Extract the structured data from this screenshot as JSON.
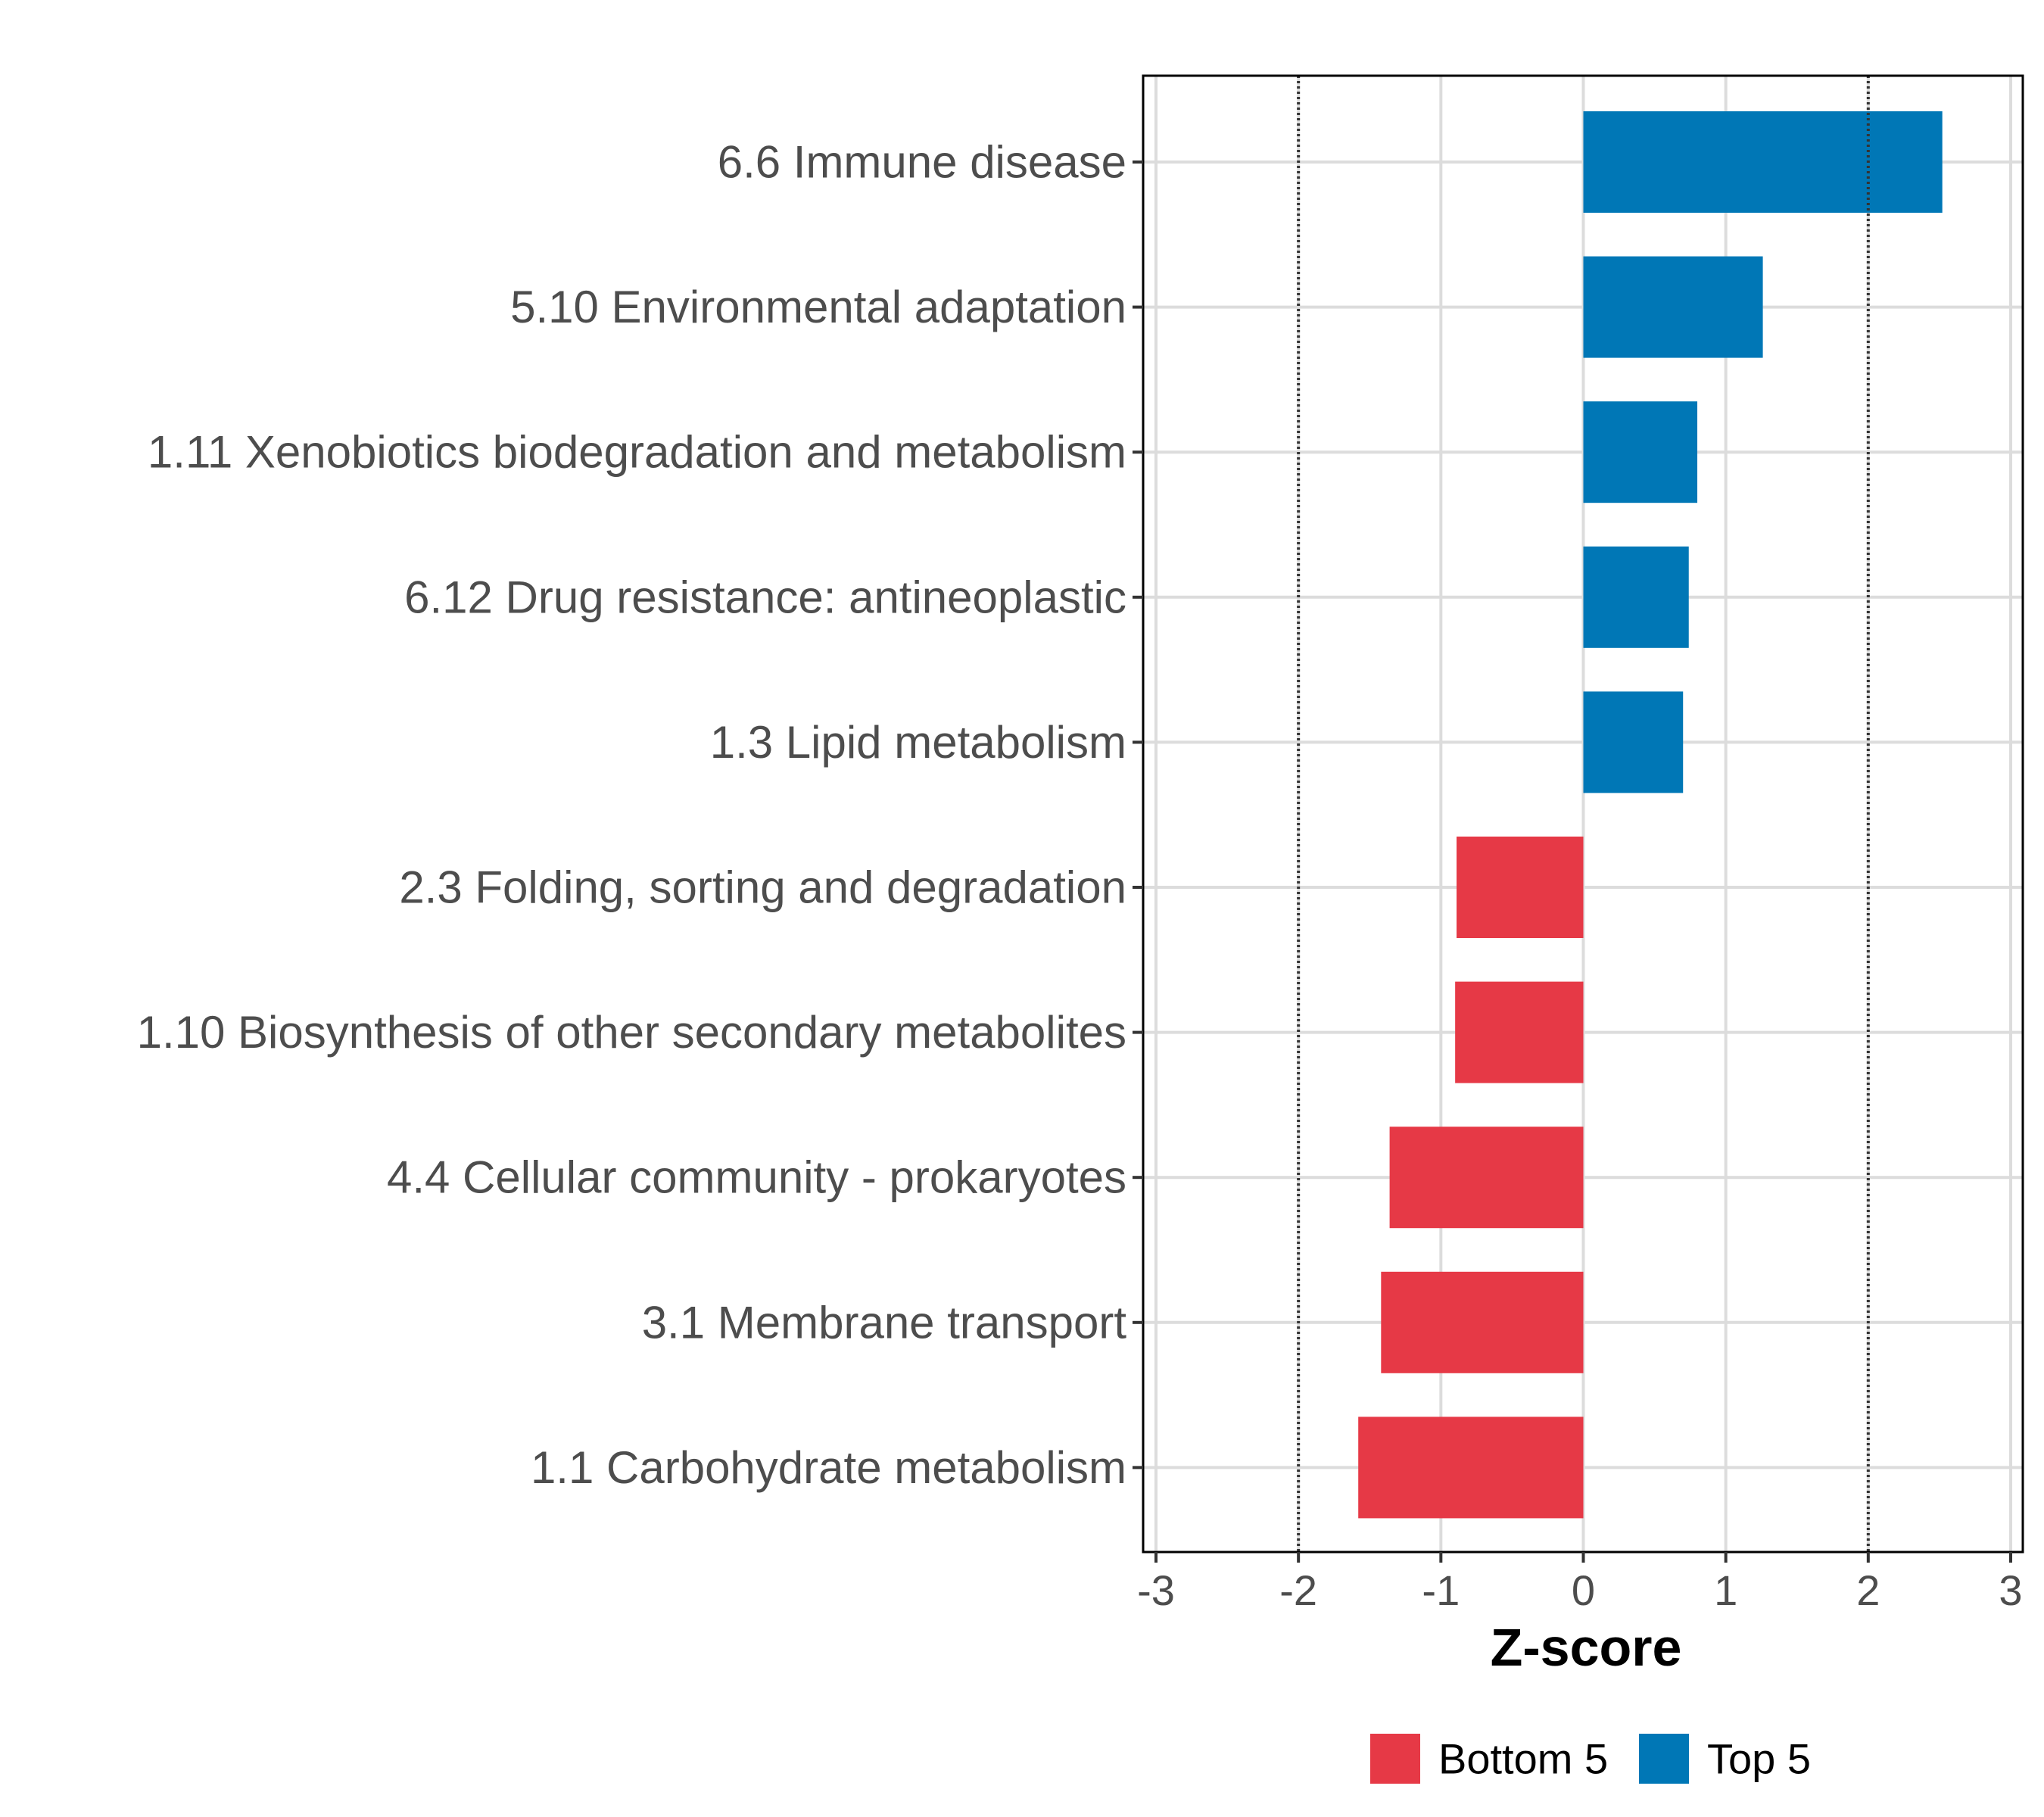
{
  "chart_data": {
    "type": "bar",
    "orientation": "horizontal",
    "xlabel": "Z-score",
    "ylabel": "",
    "xlim": [
      -3,
      3
    ],
    "xticks": [
      -3,
      -2,
      -1,
      0,
      1,
      2,
      3
    ],
    "xtick_labels": [
      "-3",
      "-2",
      "-1",
      "0",
      "1",
      "2",
      "3"
    ],
    "reference_lines": [
      -2,
      2
    ],
    "grid": true,
    "categories": [
      "6.6 Immune disease",
      "5.10 Environmental adaptation",
      "1.11 Xenobiotics biodegradation and metabolism",
      "6.12 Drug resistance: antineoplastic",
      "1.3 Lipid metabolism",
      "2.3 Folding, sorting and degradation",
      "1.10 Biosynthesis of other secondary metabolites",
      "4.4 Cellular community - prokaryotes",
      "3.1 Membrane transport",
      "1.1 Carbohydrate metabolism"
    ],
    "values": [
      2.52,
      1.26,
      0.8,
      0.74,
      0.7,
      -0.89,
      -0.9,
      -1.36,
      -1.42,
      -1.58
    ],
    "groups": [
      "Top 5",
      "Top 5",
      "Top 5",
      "Top 5",
      "Top 5",
      "Bottom 5",
      "Bottom 5",
      "Bottom 5",
      "Bottom 5",
      "Bottom 5"
    ],
    "legend": {
      "position": "bottom",
      "entries": [
        {
          "label": "Bottom 5",
          "color": "#E63946"
        },
        {
          "label": "Top 5",
          "color": "#0077B6"
        }
      ]
    }
  }
}
